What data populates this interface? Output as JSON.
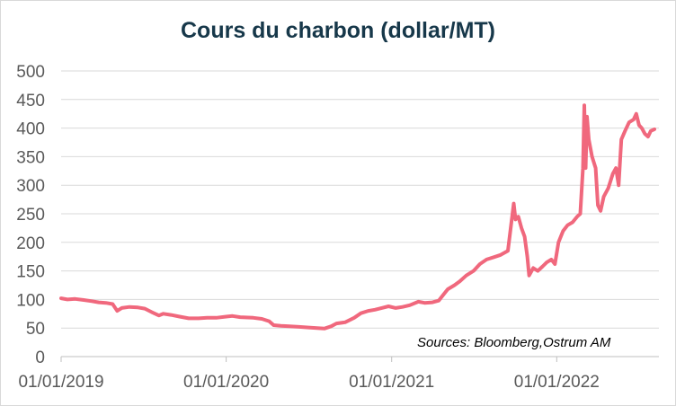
{
  "chart_data": {
    "type": "line",
    "title": "Cours du charbon (dollar/MT)",
    "xlabel": "",
    "ylabel": "",
    "ylim": [
      0,
      500
    ],
    "yticks": [
      0,
      50,
      100,
      150,
      200,
      250,
      300,
      350,
      400,
      450,
      500
    ],
    "xticks": [
      "01/01/2019",
      "01/01/2020",
      "01/01/2021",
      "01/01/2022"
    ],
    "xlim": [
      "2019-01-01",
      "2022-08-15"
    ],
    "grid": true,
    "legend": "none",
    "annotation": "Sources: Bloomberg,Ostrum AM",
    "series": [
      {
        "color": "#f0687d",
        "points": [
          [
            "2019-01-01",
            102
          ],
          [
            "2019-01-15",
            100
          ],
          [
            "2019-02-01",
            101
          ],
          [
            "2019-02-20",
            99
          ],
          [
            "2019-03-10",
            97
          ],
          [
            "2019-03-25",
            95
          ],
          [
            "2019-04-10",
            94
          ],
          [
            "2019-04-25",
            92
          ],
          [
            "2019-05-05",
            80
          ],
          [
            "2019-05-15",
            85
          ],
          [
            "2019-06-01",
            87
          ],
          [
            "2019-06-20",
            86
          ],
          [
            "2019-07-05",
            84
          ],
          [
            "2019-07-20",
            78
          ],
          [
            "2019-08-05",
            72
          ],
          [
            "2019-08-15",
            75
          ],
          [
            "2019-09-01",
            73
          ],
          [
            "2019-09-20",
            70
          ],
          [
            "2019-10-10",
            67
          ],
          [
            "2019-11-01",
            67
          ],
          [
            "2019-11-20",
            68
          ],
          [
            "2019-12-10",
            68
          ],
          [
            "2020-01-01",
            70
          ],
          [
            "2020-01-15",
            71
          ],
          [
            "2020-02-01",
            69
          ],
          [
            "2020-03-01",
            68
          ],
          [
            "2020-03-20",
            66
          ],
          [
            "2020-04-05",
            62
          ],
          [
            "2020-04-15",
            55
          ],
          [
            "2020-05-01",
            54
          ],
          [
            "2020-05-20",
            53
          ],
          [
            "2020-06-10",
            52
          ],
          [
            "2020-07-01",
            51
          ],
          [
            "2020-07-20",
            50
          ],
          [
            "2020-08-05",
            49
          ],
          [
            "2020-08-20",
            53
          ],
          [
            "2020-09-01",
            58
          ],
          [
            "2020-09-20",
            60
          ],
          [
            "2020-10-10",
            68
          ],
          [
            "2020-10-25",
            76
          ],
          [
            "2020-11-10",
            80
          ],
          [
            "2020-11-25",
            82
          ],
          [
            "2020-12-10",
            85
          ],
          [
            "2020-12-25",
            88
          ],
          [
            "2021-01-10",
            85
          ],
          [
            "2021-01-25",
            87
          ],
          [
            "2021-02-10",
            90
          ],
          [
            "2021-03-01",
            96
          ],
          [
            "2021-03-15",
            94
          ],
          [
            "2021-04-01",
            95
          ],
          [
            "2021-04-15",
            98
          ],
          [
            "2021-04-25",
            108
          ],
          [
            "2021-05-05",
            118
          ],
          [
            "2021-05-20",
            125
          ],
          [
            "2021-06-01",
            132
          ],
          [
            "2021-06-15",
            142
          ],
          [
            "2021-07-01",
            150
          ],
          [
            "2021-07-15",
            162
          ],
          [
            "2021-07-30",
            170
          ],
          [
            "2021-08-15",
            174
          ],
          [
            "2021-08-30",
            178
          ],
          [
            "2021-09-15",
            185
          ],
          [
            "2021-09-22",
            230
          ],
          [
            "2021-09-28",
            268
          ],
          [
            "2021-10-02",
            240
          ],
          [
            "2021-10-08",
            245
          ],
          [
            "2021-10-15",
            225
          ],
          [
            "2021-10-22",
            210
          ],
          [
            "2021-10-28",
            175
          ],
          [
            "2021-11-01",
            142
          ],
          [
            "2021-11-10",
            155
          ],
          [
            "2021-11-20",
            150
          ],
          [
            "2021-12-01",
            158
          ],
          [
            "2021-12-10",
            165
          ],
          [
            "2021-12-20",
            170
          ],
          [
            "2021-12-28",
            162
          ],
          [
            "2022-01-05",
            200
          ],
          [
            "2022-01-15",
            220
          ],
          [
            "2022-01-25",
            230
          ],
          [
            "2022-02-05",
            235
          ],
          [
            "2022-02-15",
            245
          ],
          [
            "2022-02-22",
            250
          ],
          [
            "2022-02-28",
            330
          ],
          [
            "2022-03-03",
            440
          ],
          [
            "2022-03-06",
            330
          ],
          [
            "2022-03-09",
            420
          ],
          [
            "2022-03-13",
            380
          ],
          [
            "2022-03-20",
            350
          ],
          [
            "2022-03-28",
            330
          ],
          [
            "2022-04-02",
            265
          ],
          [
            "2022-04-08",
            255
          ],
          [
            "2022-04-15",
            280
          ],
          [
            "2022-04-25",
            295
          ],
          [
            "2022-05-05",
            320
          ],
          [
            "2022-05-12",
            330
          ],
          [
            "2022-05-18",
            300
          ],
          [
            "2022-05-24",
            380
          ],
          [
            "2022-06-01",
            395
          ],
          [
            "2022-06-10",
            410
          ],
          [
            "2022-06-20",
            415
          ],
          [
            "2022-06-26",
            425
          ],
          [
            "2022-07-02",
            405
          ],
          [
            "2022-07-08",
            400
          ],
          [
            "2022-07-15",
            390
          ],
          [
            "2022-07-22",
            385
          ],
          [
            "2022-07-28",
            395
          ],
          [
            "2022-08-05",
            398
          ]
        ]
      }
    ]
  }
}
